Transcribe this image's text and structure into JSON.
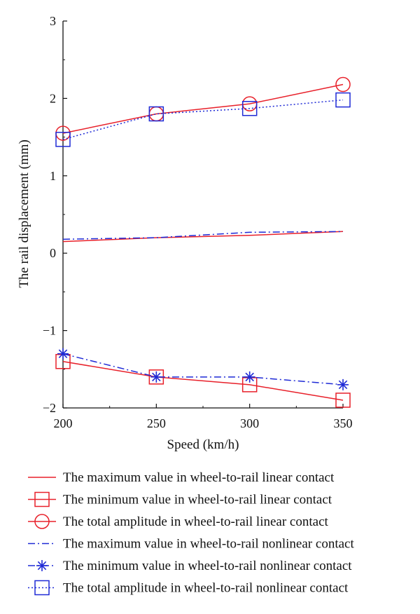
{
  "colors": {
    "red": "#e8202a",
    "blue": "#1f2ad6",
    "axis": "#111111"
  },
  "chart_data": {
    "type": "line",
    "xlabel": "Speed (km/h)",
    "ylabel": "The rail displacement (mm)",
    "x": [
      200,
      250,
      300,
      350
    ],
    "xlim": [
      200,
      350
    ],
    "ylim": [
      -2,
      3
    ],
    "xticks": [
      "200",
      "250",
      "300",
      "350"
    ],
    "yticks": [
      "−2",
      "−1",
      "0",
      "1",
      "2",
      "3"
    ],
    "grid": false,
    "legend_position": "below",
    "series": [
      {
        "name": "The maximum value in wheel-to-rail linear contact",
        "color": "#e8202a",
        "dash": "solid",
        "marker": "none",
        "values": [
          0.15,
          0.2,
          0.23,
          0.28
        ]
      },
      {
        "name": "The minimum value in wheel-to-rail linear contact",
        "color": "#e8202a",
        "dash": "solid",
        "marker": "square",
        "values": [
          -1.4,
          -1.6,
          -1.7,
          -1.9
        ]
      },
      {
        "name": "The total amplitude in wheel-to-rail linear contact",
        "color": "#e8202a",
        "dash": "solid",
        "marker": "circle",
        "values": [
          1.55,
          1.8,
          1.93,
          2.18
        ]
      },
      {
        "name": "The maximum value in wheel-to-rail nonlinear contact",
        "color": "#1f2ad6",
        "dash": "dashdot",
        "marker": "none",
        "values": [
          0.18,
          0.2,
          0.27,
          0.28
        ]
      },
      {
        "name": "The minimum value in wheel-to-rail nonlinear contact",
        "color": "#1f2ad6",
        "dash": "dashdot",
        "marker": "star",
        "values": [
          -1.3,
          -1.6,
          -1.6,
          -1.7
        ]
      },
      {
        "name": "The total amplitude in wheel-to-rail nonlinear contact",
        "color": "#1f2ad6",
        "dash": "dotted",
        "marker": "square",
        "values": [
          1.47,
          1.8,
          1.87,
          1.98
        ]
      }
    ]
  }
}
